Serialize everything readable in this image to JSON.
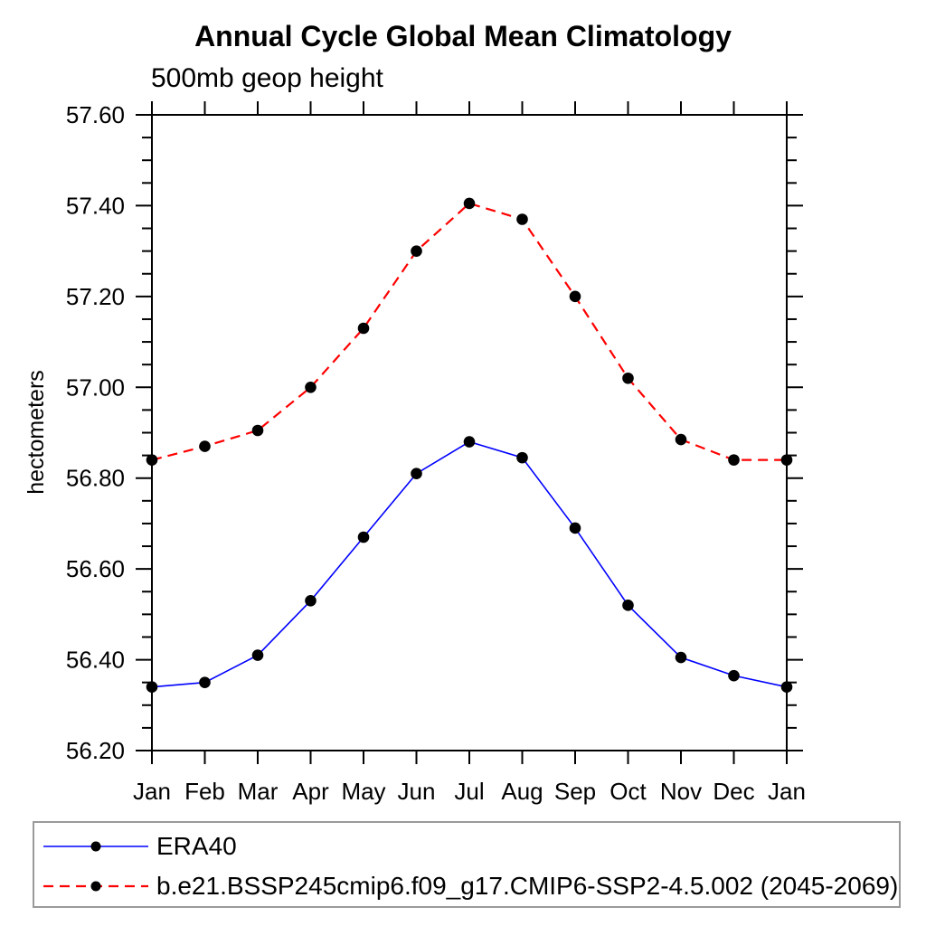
{
  "title": "Annual Cycle Global Mean Climatology",
  "subtitle": "500mb geop height",
  "chart_data": {
    "type": "line",
    "title": "Annual Cycle Global Mean Climatology",
    "subtitle": "500mb geop height",
    "xlabel": "",
    "ylabel": "hectometers",
    "categories": [
      "Jan",
      "Feb",
      "Mar",
      "Apr",
      "May",
      "Jun",
      "Jul",
      "Aug",
      "Sep",
      "Oct",
      "Nov",
      "Dec",
      "Jan"
    ],
    "ylim": [
      56.2,
      57.6
    ],
    "ytick_labels": [
      "56.20",
      "56.40",
      "56.60",
      "56.80",
      "57.00",
      "57.20",
      "57.40",
      "57.60"
    ],
    "ytick_major_interval": 0.2,
    "ytick_minor_interval": 0.05,
    "grid": false,
    "legend_position": "bottom",
    "marker": "filled-circle",
    "marker_color": "#000000",
    "series": [
      {
        "name": "ERA40",
        "color": "#0000ff",
        "style": "solid",
        "values": [
          56.34,
          56.35,
          56.41,
          56.53,
          56.67,
          56.81,
          56.88,
          56.845,
          56.69,
          56.52,
          56.405,
          56.365,
          56.34
        ]
      },
      {
        "name": "b.e21.BSSP245cmip6.f09_g17.CMIP6-SSP2-4.5.002 (2045-2069)",
        "color": "#ff0000",
        "style": "dashed",
        "values": [
          56.84,
          56.87,
          56.905,
          57.0,
          57.13,
          57.3,
          57.405,
          57.37,
          57.2,
          57.02,
          56.885,
          56.84,
          56.84
        ]
      }
    ]
  },
  "colors": {
    "axis": "#000000",
    "era40_line": "#0000ff",
    "model_line": "#ff0000",
    "marker": "#000000",
    "legend_border": "#9a9a9a",
    "background": "#ffffff"
  }
}
